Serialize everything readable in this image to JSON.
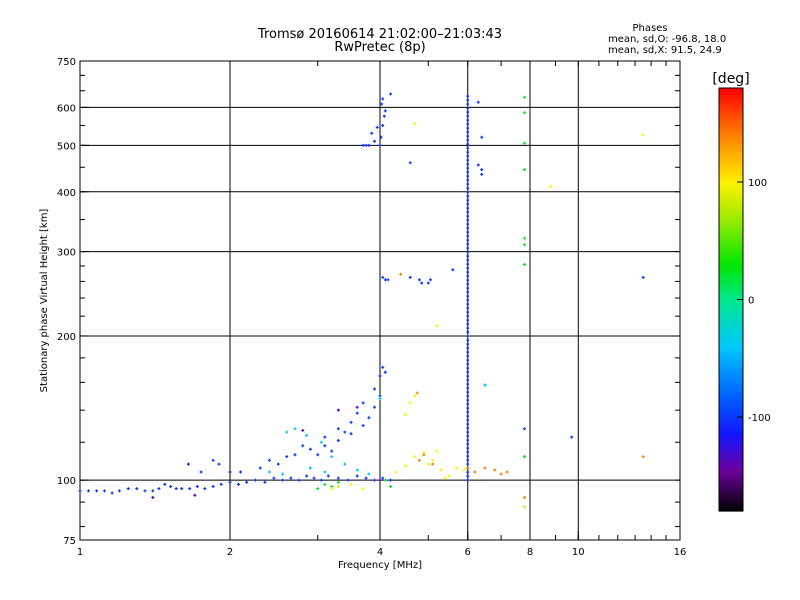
{
  "chart_data": {
    "type": "scatter",
    "title": "Tromsø 20160614 21:02:00–21:03:43",
    "subtitle": "RwPretec (8p)",
    "xlabel": "Frequency [MHz]",
    "ylabel": "Stationary phase Virtual Height [km]",
    "x_scale": "log",
    "y_scale": "log",
    "xlim": [
      1,
      16
    ],
    "ylim": [
      75,
      750
    ],
    "x_ticks": [
      1,
      2,
      4,
      6,
      8,
      10,
      16
    ],
    "x_tick_labels": [
      "1",
      "2",
      "4",
      "6",
      "8",
      "10",
      "16"
    ],
    "y_ticks": [
      75,
      100,
      200,
      300,
      400,
      500,
      600,
      750
    ],
    "y_tick_labels": [
      "75",
      "100",
      "200",
      "300",
      "400",
      "500",
      "600",
      "750"
    ],
    "grid_x": [
      2,
      4,
      6,
      8,
      10
    ],
    "grid_y": [
      100,
      200,
      300,
      400,
      500,
      600
    ],
    "stats": {
      "heading": "Phases",
      "line_o": "mean, sd,O: -96.8, 18.0",
      "line_x": "mean, sd,X:  91.5, 24.9"
    },
    "colorbar": {
      "label": "[deg]",
      "range": [
        -180,
        180
      ],
      "ticks": [
        100,
        0,
        -100
      ],
      "tick_labels": [
        "100",
        "0",
        "-100"
      ]
    },
    "series": [
      {
        "name": "blue traces (phase ≈ -100°)",
        "phase_deg": -100,
        "points": [
          [
            1.0,
            95
          ],
          [
            1.04,
            95
          ],
          [
            1.08,
            95
          ],
          [
            1.12,
            95
          ],
          [
            1.16,
            94
          ],
          [
            1.2,
            95
          ],
          [
            1.25,
            96
          ],
          [
            1.3,
            96
          ],
          [
            1.35,
            95
          ],
          [
            1.4,
            95
          ],
          [
            1.44,
            96
          ],
          [
            1.48,
            98
          ],
          [
            1.52,
            97
          ],
          [
            1.56,
            96
          ],
          [
            1.6,
            96
          ],
          [
            1.66,
            96
          ],
          [
            1.72,
            97
          ],
          [
            1.78,
            96
          ],
          [
            1.85,
            97
          ],
          [
            1.92,
            98
          ],
          [
            2.0,
            99
          ],
          [
            2.08,
            98
          ],
          [
            2.16,
            99
          ],
          [
            2.25,
            100
          ],
          [
            2.35,
            99
          ],
          [
            2.45,
            101
          ],
          [
            2.55,
            100
          ],
          [
            2.65,
            101
          ],
          [
            2.75,
            100
          ],
          [
            2.85,
            102
          ],
          [
            2.95,
            101
          ],
          [
            3.05,
            100
          ],
          [
            3.15,
            102
          ],
          [
            3.3,
            101
          ],
          [
            3.45,
            100
          ],
          [
            3.6,
            102
          ],
          [
            3.75,
            101
          ],
          [
            3.9,
            100
          ],
          [
            4.05,
            101
          ],
          [
            4.2,
            100
          ],
          [
            2.5,
            108
          ],
          [
            2.7,
            113
          ],
          [
            2.9,
            116
          ],
          [
            3.1,
            118
          ],
          [
            3.3,
            121
          ],
          [
            3.5,
            125
          ],
          [
            3.7,
            130
          ],
          [
            3.8,
            135
          ],
          [
            3.9,
            142
          ],
          [
            4.0,
            150
          ],
          [
            3.7,
            145
          ],
          [
            3.9,
            155
          ],
          [
            4.0,
            165
          ],
          [
            4.1,
            168
          ],
          [
            4.05,
            172
          ],
          [
            3.5,
            132
          ],
          [
            3.3,
            128
          ],
          [
            3.1,
            123
          ],
          [
            2.8,
            118
          ],
          [
            2.6,
            112
          ],
          [
            2.3,
            106
          ],
          [
            2.1,
            104
          ],
          [
            1.9,
            108
          ],
          [
            1.85,
            110
          ],
          [
            1.75,
            104
          ],
          [
            2.4,
            110
          ],
          [
            3.6,
            138
          ],
          [
            3.4,
            126
          ],
          [
            3.2,
            115
          ],
          [
            3.0,
            113
          ],
          [
            4.0,
            500
          ],
          [
            4.02,
            520
          ],
          [
            4.05,
            550
          ],
          [
            4.08,
            575
          ],
          [
            4.1,
            590
          ],
          [
            4.03,
            610
          ],
          [
            4.05,
            625
          ],
          [
            3.9,
            510
          ],
          [
            3.8,
            500
          ],
          [
            3.75,
            500
          ],
          [
            3.85,
            530
          ],
          [
            3.95,
            545
          ],
          [
            3.7,
            500
          ],
          [
            4.2,
            640
          ],
          [
            4.6,
            460
          ],
          [
            4.1,
            262
          ],
          [
            4.05,
            265
          ],
          [
            4.15,
            262
          ],
          [
            4.6,
            265
          ],
          [
            4.8,
            262
          ],
          [
            4.85,
            258
          ],
          [
            5.0,
            258
          ],
          [
            5.05,
            262
          ],
          [
            5.6,
            275
          ],
          [
            6.3,
            615
          ],
          [
            6.4,
            520
          ],
          [
            6.3,
            455
          ],
          [
            6.4,
            445
          ],
          [
            6.4,
            435
          ],
          [
            7.8,
            128
          ],
          [
            7.8,
            112
          ],
          [
            7.8,
            88
          ],
          [
            9.7,
            123
          ],
          [
            13.5,
            265
          ],
          [
            6.5,
            158
          ]
        ]
      },
      {
        "name": "vertical trace at ~6 MHz (phase ≈ -100°)",
        "phase_deg": -100,
        "x": 6.0,
        "y_from": 100,
        "y_to": 640
      },
      {
        "name": "cyan / light-blue traces (phase ≈ -40°)",
        "phase_deg": -40,
        "points": [
          [
            2.6,
            126
          ],
          [
            2.7,
            128
          ],
          [
            2.85,
            124
          ],
          [
            3.05,
            120
          ],
          [
            3.2,
            112
          ],
          [
            3.4,
            108
          ],
          [
            3.6,
            105
          ],
          [
            3.8,
            103
          ],
          [
            3.1,
            104
          ],
          [
            2.9,
            106
          ],
          [
            6.5,
            158
          ],
          [
            4.0,
            148
          ],
          [
            2.4,
            104
          ],
          [
            2.55,
            103
          ]
        ]
      },
      {
        "name": "green traces (phase ≈ 20°)",
        "phase_deg": 20,
        "points": [
          [
            3.0,
            96
          ],
          [
            3.1,
            98
          ],
          [
            3.2,
            97
          ],
          [
            3.3,
            99
          ],
          [
            4.1,
            100
          ],
          [
            4.2,
            97
          ],
          [
            7.8,
            630
          ],
          [
            7.8,
            585
          ],
          [
            7.8,
            505
          ],
          [
            7.8,
            445
          ],
          [
            7.8,
            320
          ],
          [
            7.8,
            310
          ],
          [
            7.8,
            282
          ],
          [
            7.8,
            112
          ]
        ]
      },
      {
        "name": "yellow traces (phase ≈ 100°)",
        "phase_deg": 100,
        "points": [
          [
            3.2,
            96
          ],
          [
            3.3,
            97
          ],
          [
            3.5,
            98
          ],
          [
            3.7,
            96
          ],
          [
            4.3,
            104
          ],
          [
            4.5,
            107
          ],
          [
            4.7,
            112
          ],
          [
            4.9,
            114
          ],
          [
            5.1,
            110
          ],
          [
            5.3,
            105
          ],
          [
            5.5,
            102
          ],
          [
            5.7,
            106
          ],
          [
            5.9,
            105
          ],
          [
            4.5,
            137
          ],
          [
            4.7,
            150
          ],
          [
            4.6,
            145
          ],
          [
            5.2,
            115
          ],
          [
            13.5,
            525
          ],
          [
            8.8,
            410
          ],
          [
            4.7,
            555
          ],
          [
            5.2,
            210
          ],
          [
            7.8,
            88
          ],
          [
            5.0,
            108
          ],
          [
            5.4,
            101
          ]
        ]
      },
      {
        "name": "orange traces (phase ≈ 140°)",
        "phase_deg": 140,
        "points": [
          [
            4.8,
            110
          ],
          [
            4.9,
            113
          ],
          [
            5.1,
            108
          ],
          [
            6.0,
            106
          ],
          [
            6.2,
            104
          ],
          [
            6.5,
            106
          ],
          [
            6.8,
            105
          ],
          [
            7.0,
            103
          ],
          [
            7.2,
            104
          ],
          [
            4.4,
            269
          ],
          [
            13.5,
            112
          ],
          [
            7.8,
            92
          ],
          [
            4.75,
            152
          ]
        ]
      },
      {
        "name": "purple / dark traces (phase ≈ -140°)",
        "phase_deg": -140,
        "points": [
          [
            1.4,
            92
          ],
          [
            1.7,
            93
          ],
          [
            2.0,
            104
          ],
          [
            2.8,
            127
          ],
          [
            3.3,
            140
          ],
          [
            3.6,
            142
          ],
          [
            4.0,
            100
          ],
          [
            1.65,
            108
          ]
        ]
      }
    ]
  }
}
